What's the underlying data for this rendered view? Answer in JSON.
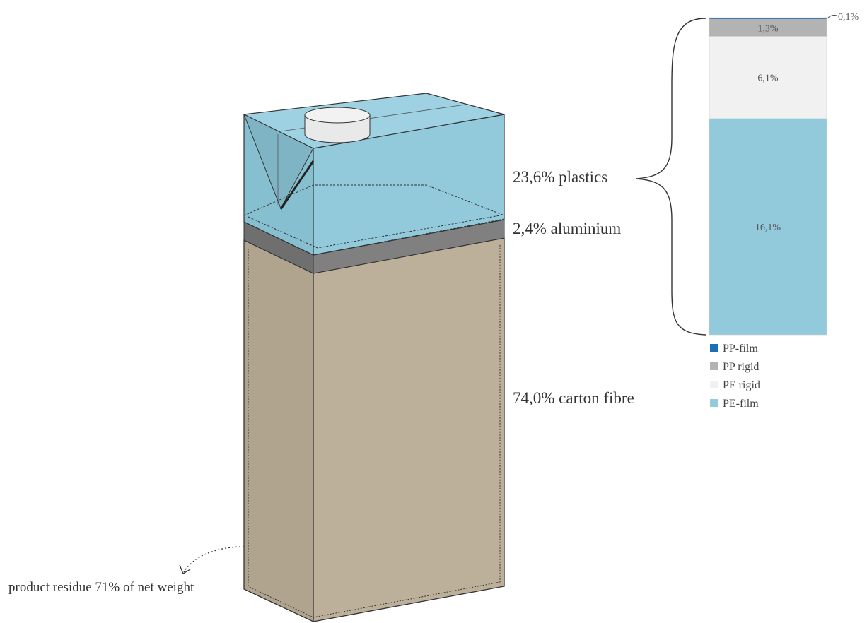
{
  "labels": {
    "plastics": "23,6% plastics",
    "aluminium": "2,4% aluminium",
    "carton": "74,0% carton fibre",
    "residue": "product residue 71% of net weight"
  },
  "chart_data": {
    "type": "bar",
    "stacked": true,
    "categories": [
      ""
    ],
    "series": [
      {
        "name": "PP-film",
        "label": "0,1%",
        "values": [
          0.1
        ],
        "color": "#1a6fb5"
      },
      {
        "name": "PP rigid",
        "label": "1,3%",
        "values": [
          1.3
        ],
        "color": "#b3b3b3"
      },
      {
        "name": "PE rigid",
        "label": "6,1%",
        "values": [
          6.1
        ],
        "color": "#f1f1f1"
      },
      {
        "name": "PE-film",
        "label": "16,1%",
        "values": [
          16.1
        ],
        "color": "#92cadb"
      }
    ],
    "total": 23.6,
    "legend": "bottom-left",
    "stack_order": "top-to-bottom"
  },
  "colors": {
    "plastic": "#92cadb",
    "aluminium": "#7d7d7d",
    "carton_front": "#bcb09a",
    "carton_side": "#b0a48e",
    "cap": "#eeeeee"
  }
}
